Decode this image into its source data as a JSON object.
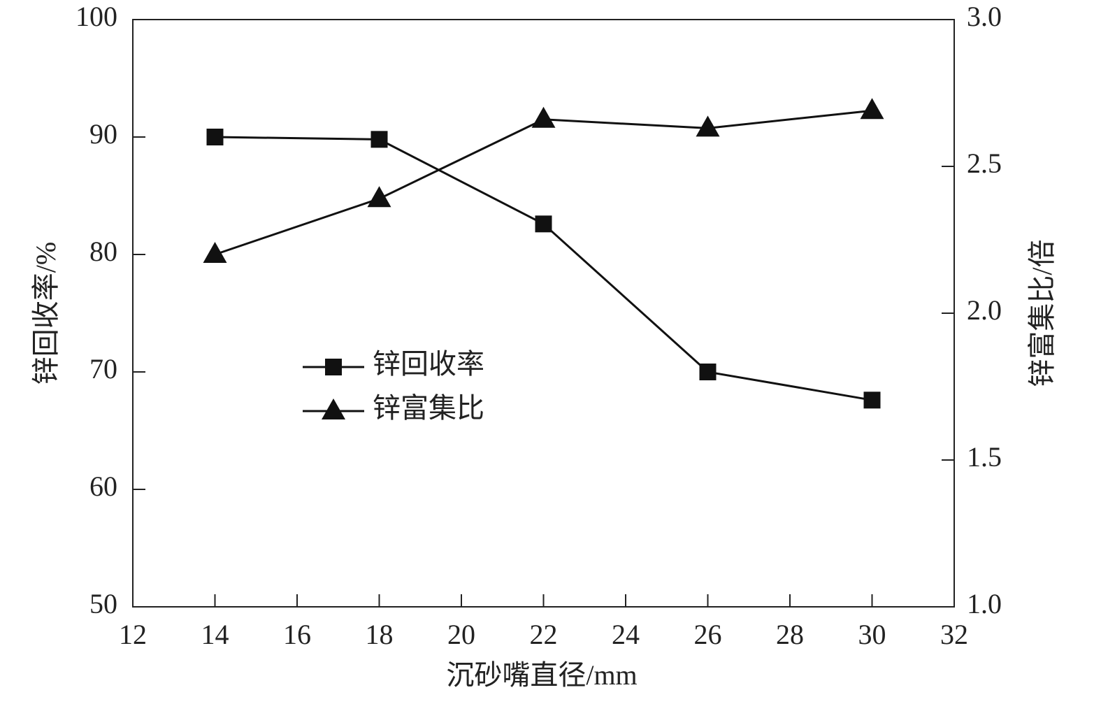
{
  "chart_data": {
    "type": "line",
    "x": [
      14,
      18,
      22,
      26,
      30
    ],
    "xlabel": "沉砂嘴直径/mm",
    "ylabel": "锌回收率/%",
    "y2label": "锌富集比/倍",
    "xlim": [
      12,
      32
    ],
    "xticks": [
      12,
      14,
      16,
      18,
      20,
      22,
      24,
      26,
      28,
      30,
      32
    ],
    "ylim": [
      50,
      100
    ],
    "yticks": [
      50,
      60,
      70,
      80,
      90,
      100
    ],
    "y2lim": [
      1.0,
      3.0
    ],
    "y2ticks": [
      {
        "value": 1.0,
        "label": "1.0"
      },
      1.5,
      {
        "value": 2.0,
        "label": "2.0"
      },
      2.5,
      {
        "value": 3.0,
        "label": "3.0"
      }
    ],
    "series": [
      {
        "name": "锌回收率",
        "color": "#111111",
        "marker": "square",
        "values": [
          90.0,
          89.8,
          82.6,
          70.0,
          67.6
        ]
      },
      {
        "name": "锌富集比",
        "color": "#111111",
        "marker": "triangle",
        "axis": "y2",
        "values": [
          2.2,
          2.39,
          2.66,
          2.63,
          2.69
        ]
      }
    ]
  }
}
